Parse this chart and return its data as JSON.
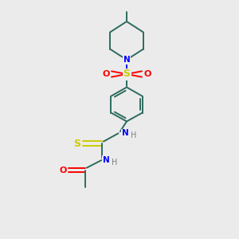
{
  "bg_color": "#ebebeb",
  "bond_color": "#2d6b5e",
  "N_color": "#0000ff",
  "O_color": "#ff0000",
  "S_color": "#cccc00",
  "H_color": "#808080",
  "line_width": 1.4,
  "fig_width": 3.0,
  "fig_height": 3.0,
  "dpi": 100,
  "xlim": [
    0,
    10
  ],
  "ylim": [
    0,
    10
  ]
}
